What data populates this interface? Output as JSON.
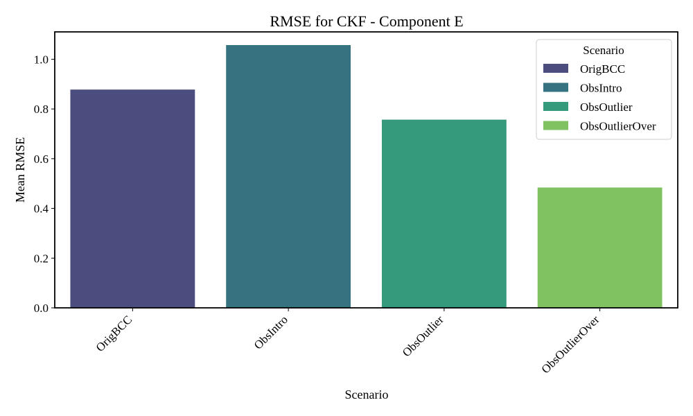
{
  "chart_data": {
    "type": "bar",
    "title": "RMSE for CKF - Component E",
    "xlabel": "Scenario",
    "ylabel": "Mean RMSE",
    "categories": [
      "OrigBCC",
      "ObsIntro",
      "ObsOutlier",
      "ObsOutlierOver"
    ],
    "values": [
      0.878,
      1.057,
      0.757,
      0.484
    ],
    "colors": [
      "#4a4d7d",
      "#367380",
      "#359a7c",
      "#80c261"
    ],
    "ylim": [
      0,
      1.11
    ],
    "yticks": [
      0.0,
      0.2,
      0.4,
      0.6,
      0.8,
      1.0
    ],
    "ytick_labels": [
      "0.0",
      "0.2",
      "0.4",
      "0.6",
      "0.8",
      "1.0"
    ],
    "grid": false,
    "legend": {
      "title": "Scenario",
      "placement": "top-right",
      "entries": [
        "OrigBCC",
        "ObsIntro",
        "ObsOutlier",
        "ObsOutlierOver"
      ]
    }
  }
}
